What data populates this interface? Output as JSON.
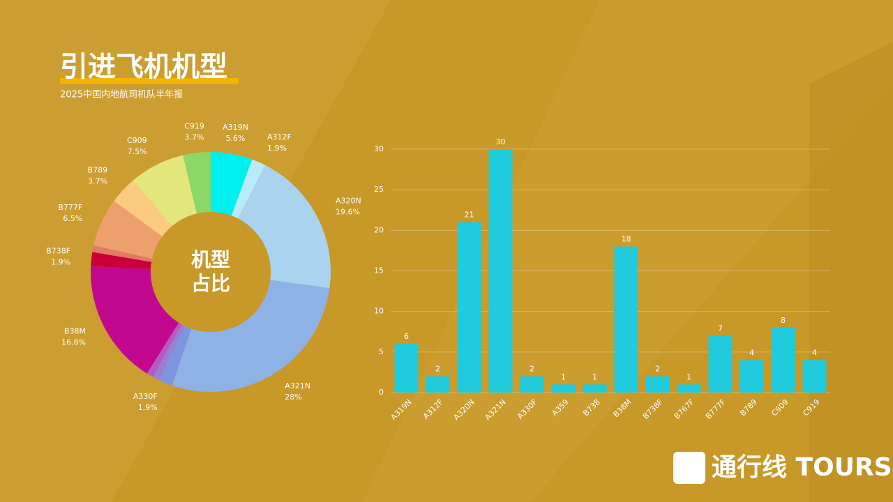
{
  "title": "引进飞机机型",
  "subtitle": "2025中国内地航司机队半年报",
  "brand": "通行线 TOURSLINE",
  "chart_data": [
    {
      "type": "donut",
      "center_label": [
        "机型",
        "占比"
      ],
      "categories": [
        "A319N",
        "A312F",
        "A320N",
        "A321N",
        "A330F",
        null,
        null,
        "B38M",
        "B738F",
        null,
        "B777F",
        "B789",
        "C909",
        "C919"
      ],
      "values": [
        5.6,
        1.9,
        19.6,
        28,
        1.9,
        0.9,
        0.9,
        16.8,
        1.9,
        0.9,
        6.5,
        3.7,
        7.5,
        3.7
      ],
      "value_labels": [
        "5.6%",
        "1.9%",
        "19.6%",
        "28%",
        "1.9%",
        null,
        null,
        "16.8%",
        "1.9%",
        null,
        "6.5%",
        "3.7%",
        "7.5%",
        "3.7%"
      ],
      "colors": [
        "#00f0f0",
        "#b8ecfb",
        "#a9d3ee",
        "#8eb1e6",
        "#7f94de",
        "#9a7fd2",
        "#b45bc4",
        "#c2088f",
        "#c9003a",
        "#e07a6a",
        "#eea06c",
        "#fbcb82",
        "#e3e77c",
        "#8bd869"
      ]
    },
    {
      "type": "bar",
      "categories": [
        "A319N",
        "A312F",
        "A320N",
        "A321N",
        "A330F",
        "A359",
        "B738",
        "B38M",
        "B738F",
        "B767F",
        "B777F",
        "B789",
        "C909",
        "C919"
      ],
      "values": [
        6,
        2,
        21,
        30,
        2,
        1,
        1,
        18,
        2,
        1,
        7,
        4,
        8,
        4
      ],
      "color": "#1fcbdc",
      "ylim": [
        0,
        30
      ],
      "yticks": [
        0,
        5,
        10,
        15,
        20,
        25,
        30
      ],
      "grid": true
    }
  ]
}
